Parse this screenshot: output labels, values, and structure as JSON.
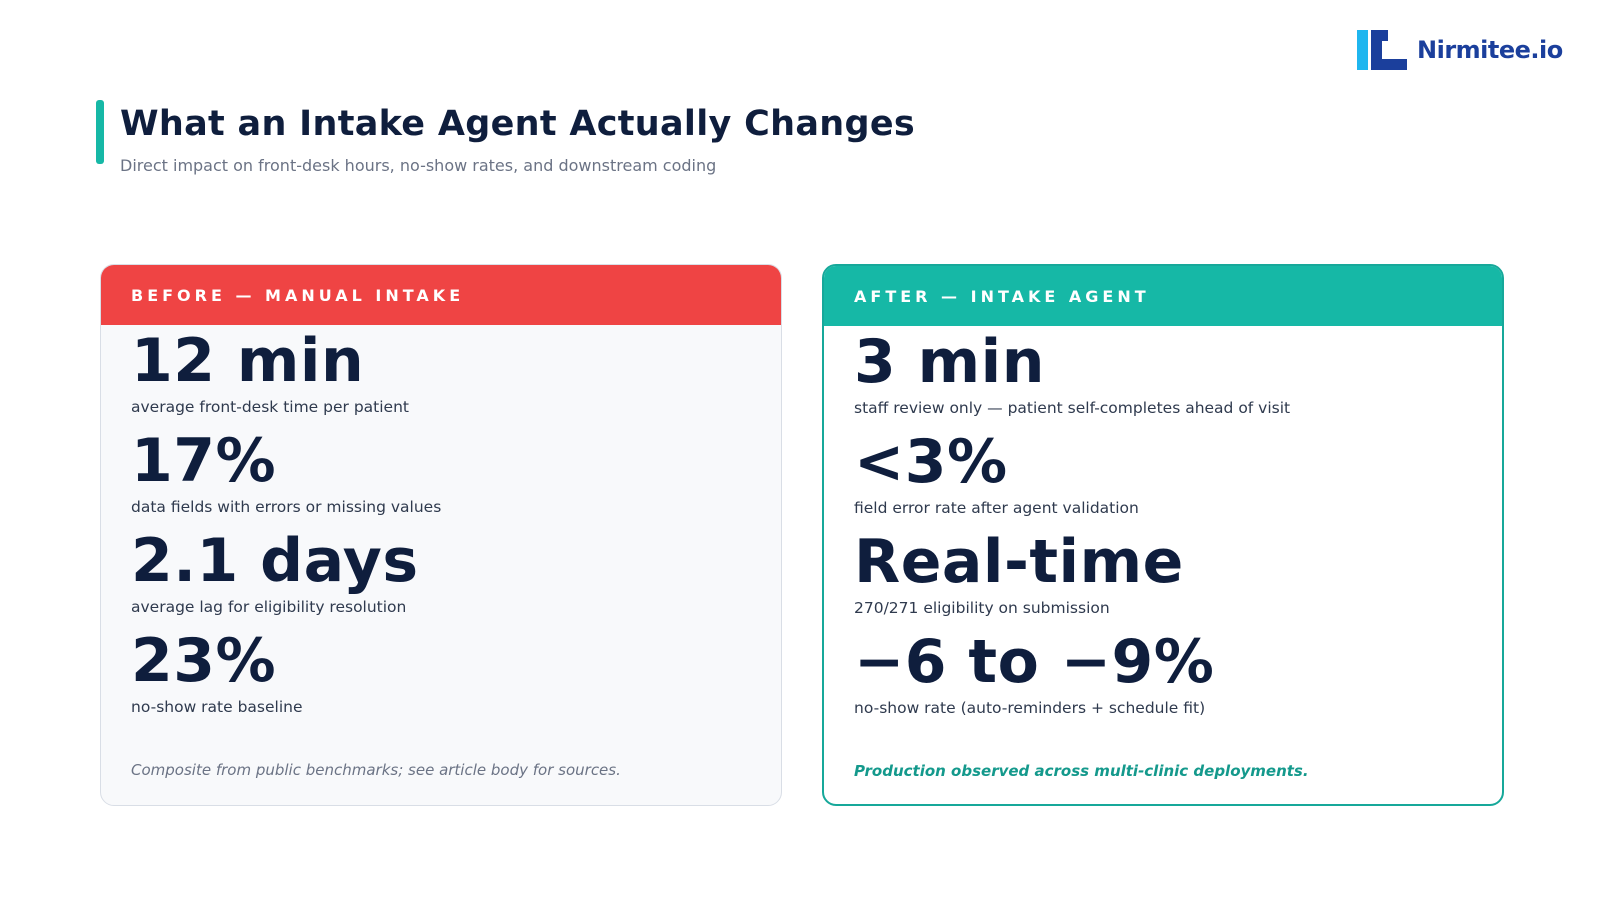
{
  "brand": {
    "name": "Nirmitee.io",
    "colors": {
      "mark_light": "#1fb6ef",
      "mark_dark": "#1b3f9c",
      "text": "#1b3f9c"
    }
  },
  "header": {
    "title": "What an Intake Agent Actually Changes",
    "subtitle": "Direct impact on front-desk hours, no-show rates, and downstream coding",
    "accent_color": "#16b8a6"
  },
  "before": {
    "header_label": "BEFORE — MANUAL INTAKE",
    "header_color": "#ef4444",
    "metrics": [
      {
        "value": "12 min",
        "description": "average front-desk time per patient"
      },
      {
        "value": "17%",
        "description": "data fields with errors or missing values"
      },
      {
        "value": "2.1 days",
        "description": "average lag for eligibility resolution"
      },
      {
        "value": "23%",
        "description": "no-show rate baseline"
      }
    ],
    "footnote": "Composite from public benchmarks; see article body for sources."
  },
  "after": {
    "header_label": "AFTER — INTAKE AGENT",
    "header_color": "#16b8a6",
    "metrics": [
      {
        "value": "3 min",
        "description": "staff review only — patient self-completes ahead of visit"
      },
      {
        "value": "<3%",
        "description": "field error rate after agent validation"
      },
      {
        "value": "Real-time",
        "description": "270/271 eligibility on submission"
      },
      {
        "value": "−6 to −9%",
        "description": "no-show rate (auto-reminders + schedule fit)"
      }
    ],
    "footnote": "Production observed across multi-clinic deployments."
  }
}
